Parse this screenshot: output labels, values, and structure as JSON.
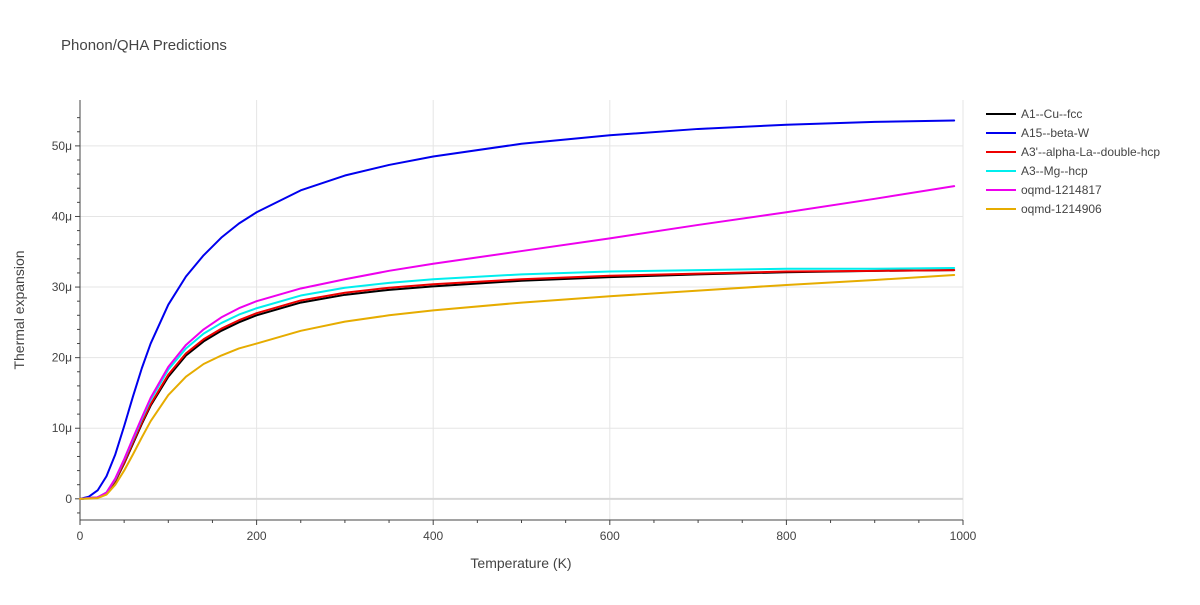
{
  "chart_data": {
    "type": "line",
    "title": "Phonon/QHA Predictions",
    "xlabel": "Temperature (K)",
    "ylabel": "Thermal expansion",
    "xlim": [
      0,
      1000
    ],
    "ylim": [
      -3e-06,
      5.65e-05
    ],
    "x_ticks": [
      0,
      200,
      400,
      600,
      800,
      1000
    ],
    "y_ticks": [
      0,
      1e-05,
      2e-05,
      3e-05,
      4e-05,
      5e-05
    ],
    "x_tick_labels": [
      "0",
      "200",
      "400",
      "600",
      "800",
      "1000"
    ],
    "y_tick_labels": [
      "0",
      "10μ",
      "20μ",
      "30μ",
      "40μ",
      "50μ"
    ],
    "grid": true,
    "legend_position": "top-right",
    "series": [
      {
        "name": "A1--Cu--fcc",
        "color": "#000000",
        "points": [
          [
            0,
            0
          ],
          [
            20,
            2e-07
          ],
          [
            30,
            8e-07
          ],
          [
            40,
            2.5e-06
          ],
          [
            50,
            5e-06
          ],
          [
            60,
            7.8e-06
          ],
          [
            70,
            1.06e-05
          ],
          [
            80,
            1.32e-05
          ],
          [
            100,
            1.73e-05
          ],
          [
            120,
            2.03e-05
          ],
          [
            140,
            2.23e-05
          ],
          [
            160,
            2.38e-05
          ],
          [
            180,
            2.5e-05
          ],
          [
            200,
            2.6e-05
          ],
          [
            250,
            2.78e-05
          ],
          [
            300,
            2.89e-05
          ],
          [
            350,
            2.96e-05
          ],
          [
            400,
            3.01e-05
          ],
          [
            500,
            3.09e-05
          ],
          [
            600,
            3.14e-05
          ],
          [
            700,
            3.18e-05
          ],
          [
            800,
            3.21e-05
          ],
          [
            900,
            3.23e-05
          ],
          [
            990,
            3.24e-05
          ]
        ]
      },
      {
        "name": "A15--beta-W",
        "color": "#0000ee",
        "points": [
          [
            0,
            0
          ],
          [
            10,
            3e-07
          ],
          [
            20,
            1.2e-06
          ],
          [
            30,
            3.2e-06
          ],
          [
            40,
            6.3e-06
          ],
          [
            50,
            1.03e-05
          ],
          [
            60,
            1.45e-05
          ],
          [
            70,
            1.85e-05
          ],
          [
            80,
            2.2e-05
          ],
          [
            100,
            2.75e-05
          ],
          [
            120,
            3.15e-05
          ],
          [
            140,
            3.45e-05
          ],
          [
            160,
            3.7e-05
          ],
          [
            180,
            3.9e-05
          ],
          [
            200,
            4.06e-05
          ],
          [
            250,
            4.37e-05
          ],
          [
            300,
            4.58e-05
          ],
          [
            350,
            4.73e-05
          ],
          [
            400,
            4.85e-05
          ],
          [
            500,
            5.03e-05
          ],
          [
            600,
            5.15e-05
          ],
          [
            700,
            5.24e-05
          ],
          [
            800,
            5.3e-05
          ],
          [
            900,
            5.34e-05
          ],
          [
            990,
            5.36e-05
          ]
        ]
      },
      {
        "name": "A3'--alpha-La--double-hcp",
        "color": "#ee0000",
        "points": [
          [
            0,
            0
          ],
          [
            20,
            2e-07
          ],
          [
            30,
            8e-07
          ],
          [
            40,
            2.6e-06
          ],
          [
            50,
            5.1e-06
          ],
          [
            60,
            8e-06
          ],
          [
            70,
            1.08e-05
          ],
          [
            80,
            1.34e-05
          ],
          [
            100,
            1.76e-05
          ],
          [
            120,
            2.06e-05
          ],
          [
            140,
            2.26e-05
          ],
          [
            160,
            2.41e-05
          ],
          [
            180,
            2.53e-05
          ],
          [
            200,
            2.63e-05
          ],
          [
            250,
            2.81e-05
          ],
          [
            300,
            2.92e-05
          ],
          [
            350,
            2.99e-05
          ],
          [
            400,
            3.04e-05
          ],
          [
            500,
            3.11e-05
          ],
          [
            600,
            3.16e-05
          ],
          [
            700,
            3.19e-05
          ],
          [
            800,
            3.22e-05
          ],
          [
            900,
            3.23e-05
          ],
          [
            990,
            3.24e-05
          ]
        ]
      },
      {
        "name": "A3--Mg--hcp",
        "color": "#00eeee",
        "points": [
          [
            0,
            0
          ],
          [
            20,
            2e-07
          ],
          [
            30,
            9e-07
          ],
          [
            40,
            2.8e-06
          ],
          [
            50,
            5.5e-06
          ],
          [
            60,
            8.4e-06
          ],
          [
            70,
            1.13e-05
          ],
          [
            80,
            1.4e-05
          ],
          [
            100,
            1.83e-05
          ],
          [
            120,
            2.13e-05
          ],
          [
            140,
            2.34e-05
          ],
          [
            160,
            2.49e-05
          ],
          [
            180,
            2.61e-05
          ],
          [
            200,
            2.7e-05
          ],
          [
            250,
            2.88e-05
          ],
          [
            300,
            2.99e-05
          ],
          [
            350,
            3.06e-05
          ],
          [
            400,
            3.11e-05
          ],
          [
            500,
            3.18e-05
          ],
          [
            600,
            3.22e-05
          ],
          [
            700,
            3.24e-05
          ],
          [
            800,
            3.26e-05
          ],
          [
            900,
            3.26e-05
          ],
          [
            990,
            3.27e-05
          ]
        ]
      },
      {
        "name": "oqmd-1214817",
        "color": "#ee00ee",
        "points": [
          [
            0,
            0
          ],
          [
            20,
            2e-07
          ],
          [
            30,
            9e-07
          ],
          [
            40,
            2.9e-06
          ],
          [
            50,
            5.6e-06
          ],
          [
            60,
            8.6e-06
          ],
          [
            70,
            1.15e-05
          ],
          [
            80,
            1.43e-05
          ],
          [
            100,
            1.87e-05
          ],
          [
            120,
            2.18e-05
          ],
          [
            140,
            2.4e-05
          ],
          [
            160,
            2.57e-05
          ],
          [
            180,
            2.7e-05
          ],
          [
            200,
            2.8e-05
          ],
          [
            250,
            2.98e-05
          ],
          [
            300,
            3.11e-05
          ],
          [
            350,
            3.23e-05
          ],
          [
            400,
            3.33e-05
          ],
          [
            500,
            3.51e-05
          ],
          [
            600,
            3.69e-05
          ],
          [
            700,
            3.88e-05
          ],
          [
            800,
            4.06e-05
          ],
          [
            900,
            4.25e-05
          ],
          [
            990,
            4.43e-05
          ]
        ]
      },
      {
        "name": "oqmd-1214906",
        "color": "#e6ac00",
        "points": [
          [
            0,
            0
          ],
          [
            20,
            1e-07
          ],
          [
            30,
            6e-07
          ],
          [
            40,
            2e-06
          ],
          [
            50,
            4e-06
          ],
          [
            60,
            6.3e-06
          ],
          [
            70,
            8.7e-06
          ],
          [
            80,
            1.1e-05
          ],
          [
            100,
            1.47e-05
          ],
          [
            120,
            1.73e-05
          ],
          [
            140,
            1.91e-05
          ],
          [
            160,
            2.03e-05
          ],
          [
            180,
            2.13e-05
          ],
          [
            200,
            2.2e-05
          ],
          [
            250,
            2.38e-05
          ],
          [
            300,
            2.51e-05
          ],
          [
            350,
            2.6e-05
          ],
          [
            400,
            2.67e-05
          ],
          [
            500,
            2.78e-05
          ],
          [
            600,
            2.87e-05
          ],
          [
            700,
            2.95e-05
          ],
          [
            800,
            3.03e-05
          ],
          [
            900,
            3.1e-05
          ],
          [
            990,
            3.17e-05
          ]
        ]
      }
    ]
  }
}
